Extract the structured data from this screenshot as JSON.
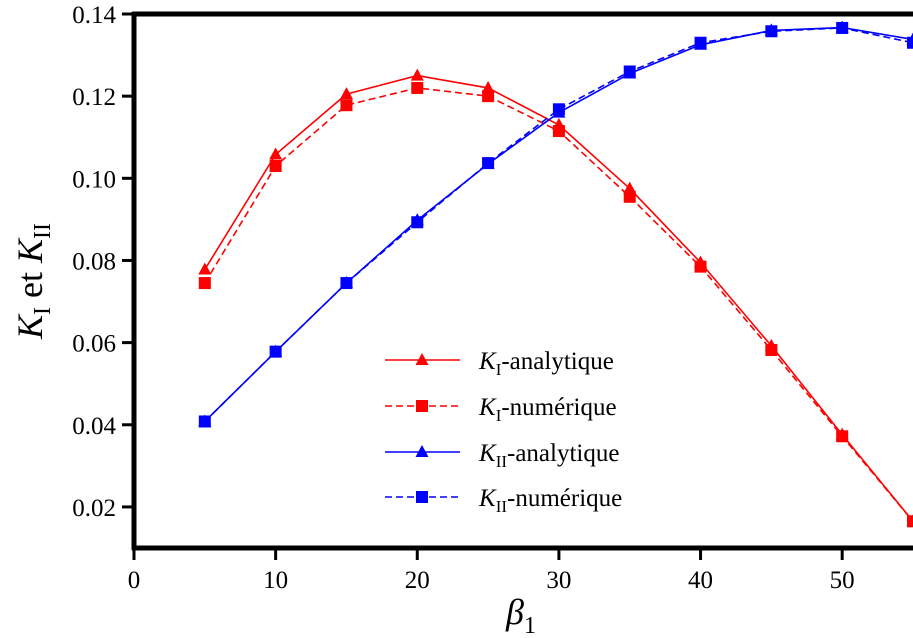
{
  "chart_data": {
    "type": "line",
    "xlabel": "β1",
    "ylabel": "KI et KII",
    "xlim": [
      0,
      55
    ],
    "ylim": [
      0.01,
      0.14
    ],
    "xticks": [
      0,
      10,
      20,
      30,
      40,
      50
    ],
    "yticks": [
      0.02,
      0.04,
      0.06,
      0.08,
      0.1,
      0.12,
      0.14
    ],
    "ytick_labels": [
      "0.02",
      "0.04",
      "0.06",
      "0.08",
      "0.10",
      "0.12",
      "0.14"
    ],
    "grid": false,
    "legend_position": "lower-center",
    "x": [
      5,
      10,
      15,
      20,
      25,
      30,
      35,
      40,
      45,
      50,
      55
    ],
    "series": [
      {
        "name": "KI-analytique",
        "color": "#ff0000",
        "line": "solid",
        "marker": "triangle",
        "values": [
          0.0778,
          0.1058,
          0.1205,
          0.125,
          0.122,
          0.113,
          0.0975,
          0.0795,
          0.0592,
          0.0376,
          0.0165
        ]
      },
      {
        "name": "KI-numérique",
        "color": "#ff0000",
        "line": "dashed",
        "marker": "square",
        "values": [
          0.0745,
          0.103,
          0.1178,
          0.122,
          0.12,
          0.1115,
          0.0955,
          0.0785,
          0.0582,
          0.0372,
          0.0165
        ]
      },
      {
        "name": "KII-analytique",
        "color": "#0000ff",
        "line": "solid",
        "marker": "triangle",
        "values": [
          0.0408,
          0.0578,
          0.0745,
          0.0898,
          0.1035,
          0.116,
          0.1255,
          0.1325,
          0.136,
          0.1367,
          0.1338
        ]
      },
      {
        "name": "KII-numérique",
        "color": "#0000ff",
        "line": "dashed",
        "marker": "square",
        "values": [
          0.0408,
          0.0578,
          0.0745,
          0.0893,
          0.1037,
          0.1168,
          0.126,
          0.133,
          0.1358,
          0.1366,
          0.133
        ]
      }
    ]
  }
}
